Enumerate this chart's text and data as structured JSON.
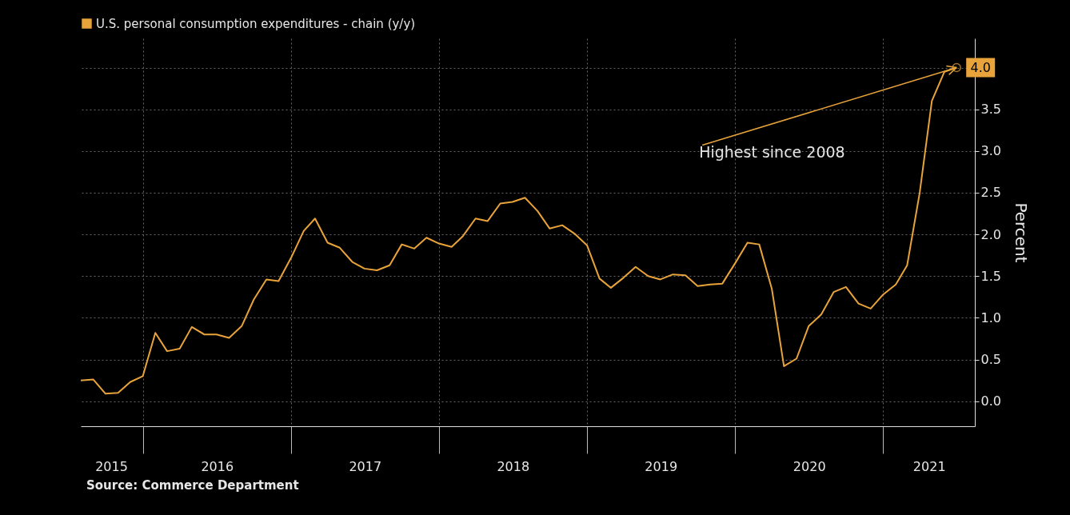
{
  "chart_data": {
    "type": "line",
    "ylabel": "Percent",
    "x": [
      "2015-08",
      "2015-09",
      "2015-10",
      "2015-11",
      "2015-12",
      "2016-01",
      "2016-02",
      "2016-03",
      "2016-04",
      "2016-05",
      "2016-06",
      "2016-07",
      "2016-08",
      "2016-09",
      "2016-10",
      "2016-11",
      "2016-12",
      "2017-01",
      "2017-02",
      "2017-03",
      "2017-04",
      "2017-05",
      "2017-06",
      "2017-07",
      "2017-08",
      "2017-09",
      "2017-10",
      "2017-11",
      "2017-12",
      "2018-01",
      "2018-02",
      "2018-03",
      "2018-04",
      "2018-05",
      "2018-06",
      "2018-07",
      "2018-08",
      "2018-09",
      "2018-10",
      "2018-11",
      "2018-12",
      "2019-01",
      "2019-02",
      "2019-03",
      "2019-04",
      "2019-05",
      "2019-06",
      "2019-07",
      "2019-08",
      "2019-09",
      "2019-10",
      "2019-11",
      "2019-12",
      "2020-01",
      "2020-02",
      "2020-03",
      "2020-04",
      "2020-05",
      "2020-06",
      "2020-07",
      "2020-08",
      "2020-09",
      "2020-10",
      "2020-11",
      "2020-12",
      "2021-01",
      "2021-02",
      "2021-03",
      "2021-04",
      "2021-05",
      "2021-06",
      "2021-07"
    ],
    "series": [
      {
        "name": "U.S. personal consumption expenditures - chain (y/y)",
        "color": "#e8a33a",
        "values": [
          0.25,
          0.26,
          0.09,
          0.1,
          0.23,
          0.3,
          0.82,
          0.6,
          0.63,
          0.89,
          0.8,
          0.8,
          0.76,
          0.9,
          1.22,
          1.46,
          1.44,
          1.72,
          2.04,
          2.19,
          1.9,
          1.84,
          1.67,
          1.59,
          1.57,
          1.63,
          1.88,
          1.83,
          1.96,
          1.89,
          1.85,
          1.98,
          2.19,
          2.16,
          2.37,
          2.39,
          2.44,
          2.28,
          2.07,
          2.11,
          2.01,
          1.87,
          1.47,
          1.36,
          1.48,
          1.61,
          1.5,
          1.46,
          1.52,
          1.51,
          1.38,
          1.4,
          1.41,
          1.65,
          1.9,
          1.88,
          1.35,
          0.42,
          0.51,
          0.9,
          1.04,
          1.31,
          1.37,
          1.17,
          1.11,
          1.28,
          1.4,
          1.63,
          2.5,
          3.6,
          3.95,
          4.0
        ],
        "value_labels": [
          null,
          null,
          null,
          null,
          null,
          null,
          null,
          null,
          null,
          null,
          null,
          null,
          null,
          null,
          null,
          null,
          null,
          null,
          null,
          null,
          null,
          null,
          null,
          null,
          null,
          null,
          null,
          null,
          null,
          null,
          null,
          null,
          null,
          null,
          null,
          null,
          null,
          null,
          null,
          null,
          null,
          null,
          null,
          null,
          null,
          null,
          null,
          null,
          null,
          null,
          null,
          null,
          null,
          null,
          null,
          null,
          null,
          null,
          null,
          null,
          null,
          null,
          null,
          null,
          null,
          null,
          null,
          null,
          null,
          null,
          null,
          "4.0"
        ]
      }
    ],
    "xlim": [
      "2015-08-01",
      "2021-08-15"
    ],
    "xticks": [
      {
        "value": "2015-10-15",
        "label": "2015"
      },
      {
        "value": "2016-01-01",
        "label": null
      },
      {
        "value": "2016-07-02",
        "label": "2016"
      },
      {
        "value": "2017-01-01",
        "label": null
      },
      {
        "value": "2017-07-02",
        "label": "2017"
      },
      {
        "value": "2018-01-01",
        "label": null
      },
      {
        "value": "2018-07-02",
        "label": "2018"
      },
      {
        "value": "2019-01-01",
        "label": null
      },
      {
        "value": "2019-07-02",
        "label": "2019"
      },
      {
        "value": "2020-01-01",
        "label": null
      },
      {
        "value": "2020-07-02",
        "label": "2020"
      },
      {
        "value": "2021-01-01",
        "label": null
      },
      {
        "value": "2021-04-24",
        "label": "2021"
      }
    ],
    "ylim": [
      -0.3,
      4.35
    ],
    "yticks": [
      {
        "value": 0,
        "label": "0.0"
      },
      {
        "value": 0.5,
        "label": "0.5"
      },
      {
        "value": 1,
        "label": "1.0"
      },
      {
        "value": 1.5,
        "label": "1.5"
      },
      {
        "value": 2,
        "label": "2.0"
      },
      {
        "value": 2.5,
        "label": "2.5"
      },
      {
        "value": 3,
        "label": "3.0"
      },
      {
        "value": 3.5,
        "label": "3.5"
      },
      {
        "value": 4,
        "label": null
      }
    ],
    "annotations": [
      {
        "text": "Highest since 2008",
        "x": "2021-07",
        "y": 4.0
      },
      "Source: Commerce Department"
    ],
    "grid": true,
    "legend": "top left"
  }
}
